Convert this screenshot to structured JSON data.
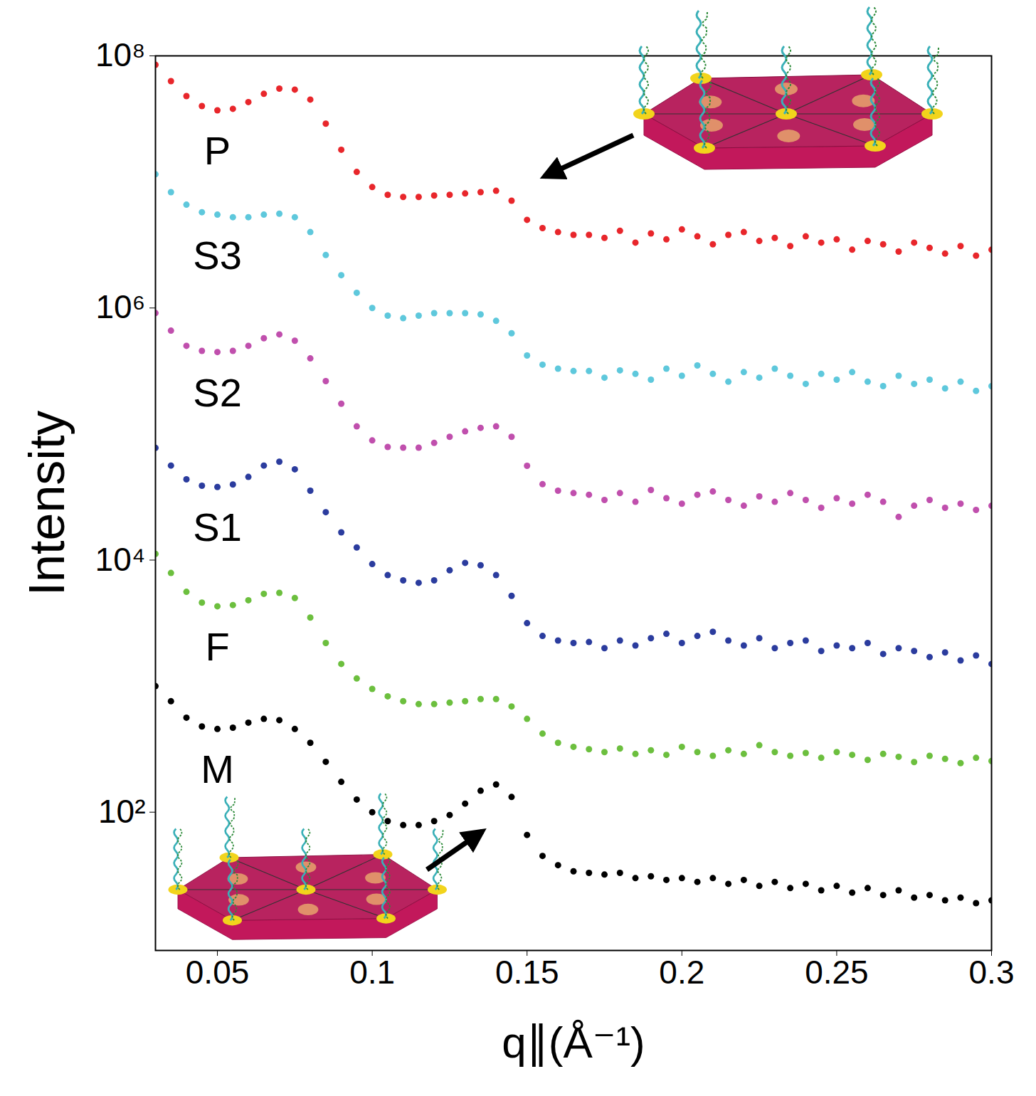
{
  "chart_data": {
    "type": "scatter",
    "x_label": "q∥(Å⁻¹)",
    "y_label": "Intensity",
    "log": "y",
    "grid": false,
    "xlim": [
      0.03,
      0.3
    ],
    "ylim": [
      8,
      100000000
    ],
    "xticks": [
      0.05,
      0.1,
      0.15,
      0.2,
      0.25,
      0.3
    ],
    "yticks": [
      {
        "value": 100,
        "label": "10²"
      },
      {
        "value": 10000,
        "label": "10⁴"
      },
      {
        "value": 1000000,
        "label": "10⁶"
      },
      {
        "value": 100000000,
        "label": "10⁸"
      }
    ],
    "x": [
      0.03,
      0.035,
      0.04,
      0.045,
      0.05,
      0.055,
      0.06,
      0.065,
      0.07,
      0.075,
      0.08,
      0.085,
      0.09,
      0.095,
      0.1,
      0.105,
      0.11,
      0.115,
      0.12,
      0.125,
      0.13,
      0.135,
      0.14,
      0.145,
      0.15,
      0.155,
      0.16,
      0.165,
      0.17,
      0.175,
      0.18,
      0.185,
      0.19,
      0.195,
      0.2,
      0.205,
      0.21,
      0.215,
      0.22,
      0.225,
      0.23,
      0.235,
      0.24,
      0.245,
      0.25,
      0.255,
      0.26,
      0.265,
      0.27,
      0.275,
      0.28,
      0.285,
      0.29,
      0.295,
      0.3
    ],
    "series": [
      {
        "name": "P",
        "color": "#e8262b",
        "marker": "circle",
        "values": [
          85000000,
          63000000,
          48000000,
          40000000,
          37000000,
          38000000,
          43000000,
          50000000,
          55000000,
          54000000,
          45000000,
          29000000,
          18000000,
          12000000,
          9100000,
          7900000,
          7600000,
          7600000,
          7800000,
          7900000,
          8100000,
          8300000,
          8500000,
          7100000,
          5000000,
          4300000,
          4000000,
          3800000,
          3800000,
          3600000,
          4100000,
          3300000,
          3900000,
          3500000,
          4200000,
          3700000,
          3200000,
          3800000,
          4000000,
          3400000,
          3600000,
          3100000,
          3700000,
          3300000,
          3500000,
          2900000,
          3400000,
          3200000,
          2800000,
          3300000,
          3000000,
          2700000,
          3100000,
          2600000,
          2900000
        ]
      },
      {
        "name": "S3",
        "color": "#5ec8dc",
        "marker": "circle",
        "values": [
          11500000,
          8300000,
          6600000,
          5750000,
          5500000,
          5250000,
          5250000,
          5500000,
          5600000,
          5250000,
          4000000,
          2630000,
          1820000,
          1320000,
          1000000,
          870000,
          830000,
          870000,
          910000,
          910000,
          910000,
          890000,
          790000,
          630000,
          420000,
          355000,
          330000,
          316000,
          316000,
          280000,
          320000,
          300000,
          270000,
          330000,
          290000,
          350000,
          300000,
          260000,
          310000,
          280000,
          330000,
          290000,
          250000,
          300000,
          270000,
          310000,
          260000,
          240000,
          290000,
          250000,
          270000,
          230000,
          260000,
          220000,
          240000
        ]
      },
      {
        "name": "S2",
        "color": "#c04fad",
        "marker": "circle",
        "values": [
          912000,
          661000,
          501000,
          457000,
          447000,
          457000,
          501000,
          575000,
          617000,
          550000,
          398000,
          263000,
          174000,
          115000,
          89000,
          79000,
          78000,
          78000,
          85000,
          95000,
          105000,
          112000,
          115000,
          95000,
          56000,
          40000,
          35500,
          34000,
          33000,
          30000,
          34000,
          29000,
          36000,
          31000,
          28000,
          33000,
          35000,
          30000,
          27000,
          32000,
          29000,
          34000,
          30000,
          26000,
          31000,
          28000,
          33000,
          29000,
          22000,
          27000,
          30000,
          26000,
          28000,
          25000,
          27000
        ]
      },
      {
        "name": "S1",
        "color": "#2b3c9e",
        "marker": "circle",
        "values": [
          77600,
          56200,
          43700,
          38900,
          38000,
          39800,
          45700,
          56200,
          60300,
          52500,
          35500,
          24000,
          16600,
          12600,
          9300,
          7600,
          6900,
          6600,
          6900,
          8300,
          9500,
          9100,
          7600,
          5200,
          3160,
          2500,
          2300,
          2200,
          2240,
          2000,
          2300,
          2100,
          2400,
          2600,
          2200,
          2500,
          2700,
          2300,
          2100,
          2400,
          2000,
          2200,
          2300,
          1900,
          2100,
          2000,
          2200,
          1800,
          2000,
          1900,
          1700,
          1850,
          1600,
          1750,
          1500
        ]
      },
      {
        "name": "F",
        "color": "#6cbf3e",
        "marker": "circle",
        "values": [
          11200,
          7900,
          5600,
          4600,
          4300,
          4400,
          4800,
          5400,
          5500,
          5000,
          3500,
          2200,
          1500,
          1150,
          950,
          830,
          760,
          720,
          720,
          740,
          760,
          790,
          790,
          690,
          550,
          420,
          355,
          330,
          316,
          300,
          320,
          290,
          310,
          285,
          330,
          300,
          280,
          310,
          290,
          340,
          300,
          280,
          295,
          270,
          300,
          285,
          260,
          290,
          275,
          250,
          280,
          265,
          245,
          270,
          255
        ]
      },
      {
        "name": "M",
        "color": "#000000",
        "marker": "circle",
        "values": [
          1000,
          759,
          562,
          479,
          457,
          468,
          513,
          550,
          537,
          457,
          355,
          251,
          174,
          126,
          100,
          85,
          79,
          79,
          85,
          95,
          117,
          148,
          166,
          132,
          66,
          45,
          38,
          34,
          33,
          32,
          33,
          30,
          31,
          29,
          30,
          28,
          30,
          27,
          29,
          26,
          28,
          25,
          27,
          24,
          26,
          23,
          25,
          22,
          24,
          21,
          22,
          20,
          21,
          19,
          20
        ]
      }
    ]
  }
}
